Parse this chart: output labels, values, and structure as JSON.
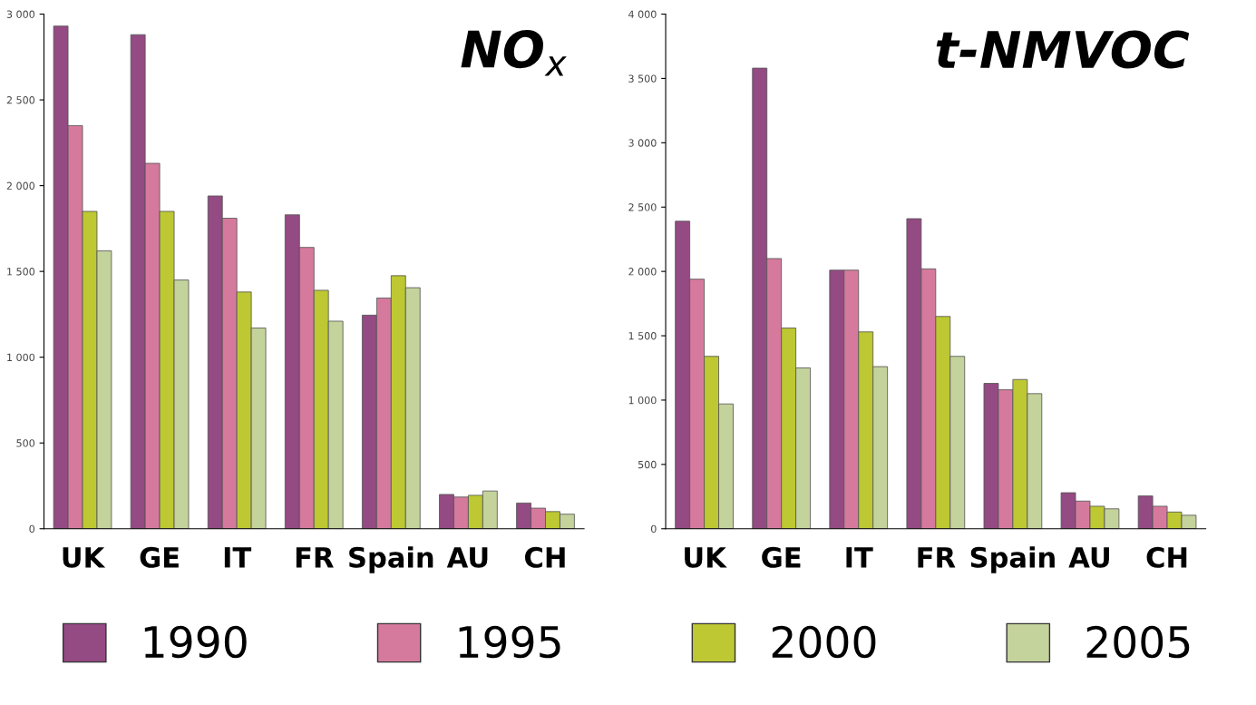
{
  "chart_data": [
    {
      "type": "bar",
      "title": "NO$_{x}$",
      "categories": [
        "UK",
        "GE",
        "IT",
        "FR",
        "Spain",
        "AU",
        "CH"
      ],
      "ylim": [
        0,
        3000
      ],
      "yticks": [
        {
          "value": 0,
          "label": "0"
        },
        {
          "value": 500,
          "label": "500"
        },
        {
          "value": 1000,
          "label": "1 000"
        },
        {
          "value": 1500,
          "label": "1 500"
        },
        {
          "value": 2000,
          "label": "2 000"
        },
        {
          "value": 2500,
          "label": "2 500"
        },
        {
          "value": 3000,
          "label": "3 000"
        }
      ],
      "grid": false,
      "legend": "bottom",
      "series": [
        {
          "name": "1990",
          "color": "#944a83",
          "values": [
            2930,
            2880,
            1940,
            1830,
            1245,
            200,
            150
          ]
        },
        {
          "name": "1995",
          "color": "#d57a9d",
          "values": [
            2350,
            2130,
            1810,
            1640,
            1345,
            185,
            120
          ]
        },
        {
          "name": "2000",
          "color": "#bdc832",
          "values": [
            1850,
            1850,
            1380,
            1390,
            1475,
            195,
            100
          ]
        },
        {
          "name": "2005",
          "color": "#c4d29c",
          "values": [
            1620,
            1450,
            1170,
            1210,
            1405,
            220,
            85
          ]
        }
      ]
    },
    {
      "type": "bar",
      "title": "t-NMVOC",
      "categories": [
        "UK",
        "GE",
        "IT",
        "FR",
        "Spain",
        "AU",
        "CH"
      ],
      "ylim": [
        0,
        4000
      ],
      "yticks": [
        {
          "value": 0,
          "label": "0"
        },
        {
          "value": 500,
          "label": "500"
        },
        {
          "value": 1000,
          "label": "1 000"
        },
        {
          "value": 1500,
          "label": "1 500"
        },
        {
          "value": 2000,
          "label": "2 000"
        },
        {
          "value": 2500,
          "label": "2 500"
        },
        {
          "value": 3000,
          "label": "3 000"
        },
        {
          "value": 3500,
          "label": "3 500"
        },
        {
          "value": 4000,
          "label": "4 000"
        }
      ],
      "grid": false,
      "legend": "bottom",
      "series": [
        {
          "name": "1990",
          "color": "#944a83",
          "values": [
            2390,
            3580,
            2010,
            2410,
            1130,
            280,
            255
          ]
        },
        {
          "name": "1995",
          "color": "#d57a9d",
          "values": [
            1940,
            2100,
            2010,
            2020,
            1080,
            215,
            175
          ]
        },
        {
          "name": "2000",
          "color": "#bdc832",
          "values": [
            1340,
            1560,
            1530,
            1650,
            1160,
            175,
            130
          ]
        },
        {
          "name": "2005",
          "color": "#c4d29c",
          "values": [
            970,
            1250,
            1260,
            1340,
            1050,
            155,
            105
          ]
        }
      ]
    }
  ]
}
